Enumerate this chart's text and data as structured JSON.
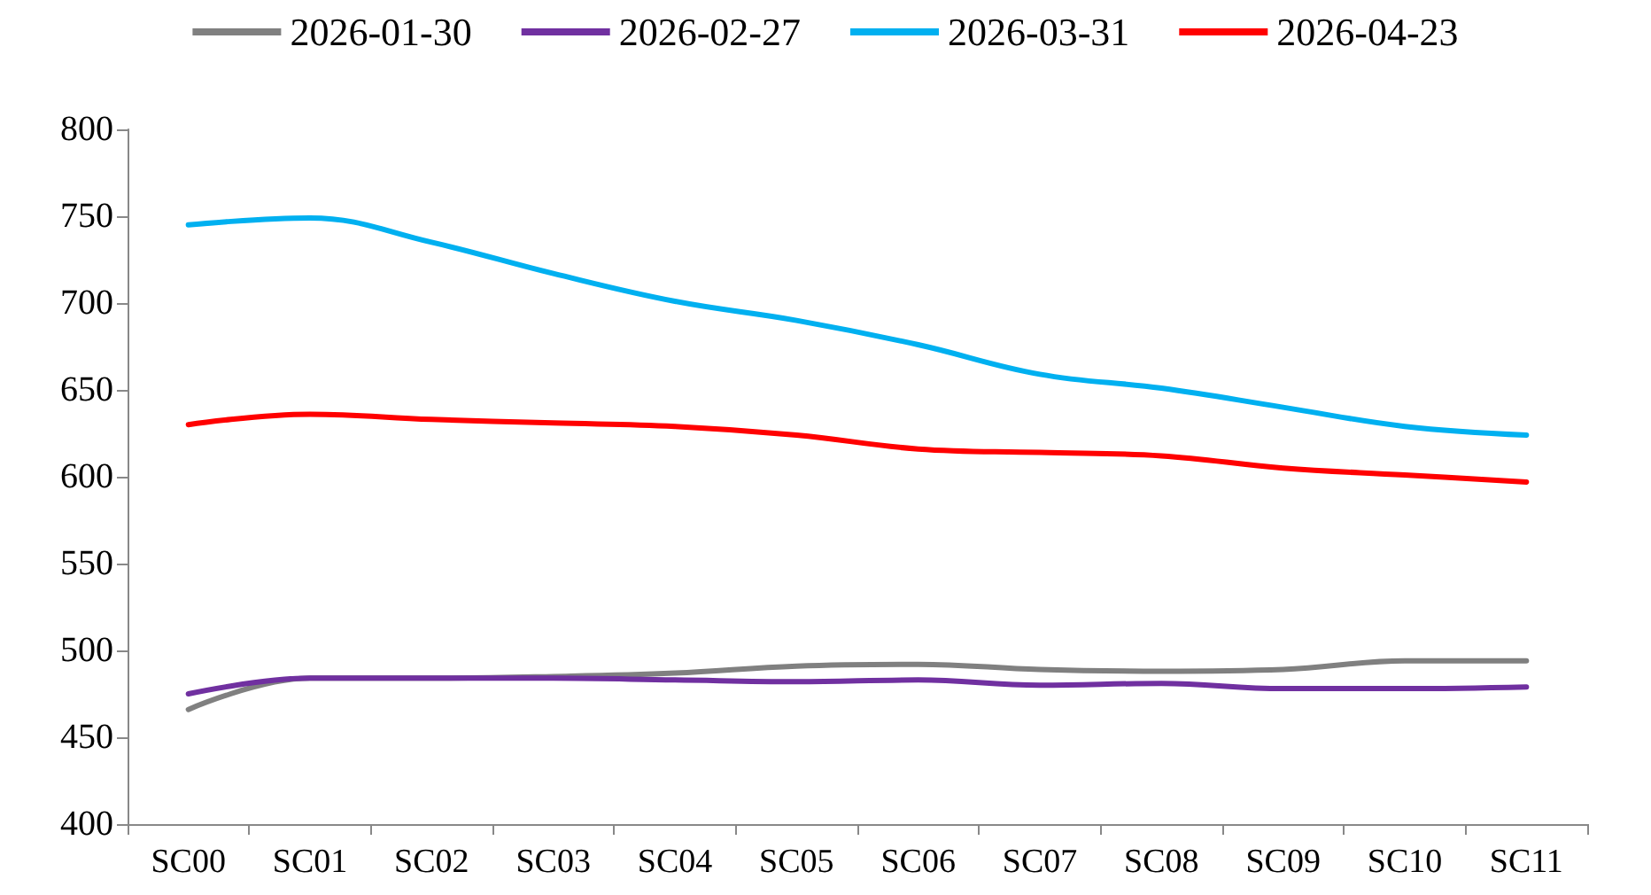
{
  "chart_data": {
    "type": "line",
    "categories": [
      "SC00",
      "SC01",
      "SC02",
      "SC03",
      "SC04",
      "SC05",
      "SC06",
      "SC07",
      "SC08",
      "SC09",
      "SC10",
      "SC11"
    ],
    "series": [
      {
        "name": "2026-01-30",
        "color": "#808080",
        "values": [
          466,
          484,
          484,
          485,
          487,
          491,
          492,
          489,
          488,
          489,
          494,
          494
        ]
      },
      {
        "name": "2026-02-27",
        "color": "#7030a0",
        "values": [
          475,
          484,
          484,
          484,
          483,
          482,
          483,
          480,
          481,
          478,
          478,
          479
        ]
      },
      {
        "name": "2026-03-31",
        "color": "#00b0f0",
        "values": [
          745,
          749,
          735,
          717,
          701,
          690,
          676,
          659,
          651,
          640,
          629,
          624
        ]
      },
      {
        "name": "2026-04-23",
        "color": "#ff0000",
        "values": [
          630,
          636,
          633,
          631,
          629,
          624,
          616,
          614,
          612,
          605,
          601,
          597
        ]
      }
    ],
    "ylim": [
      400,
      800
    ],
    "yticks": [
      400,
      450,
      500,
      550,
      600,
      650,
      700,
      750,
      800
    ],
    "grid": false,
    "legend": "top",
    "marker": "none",
    "line_style": "solid"
  }
}
